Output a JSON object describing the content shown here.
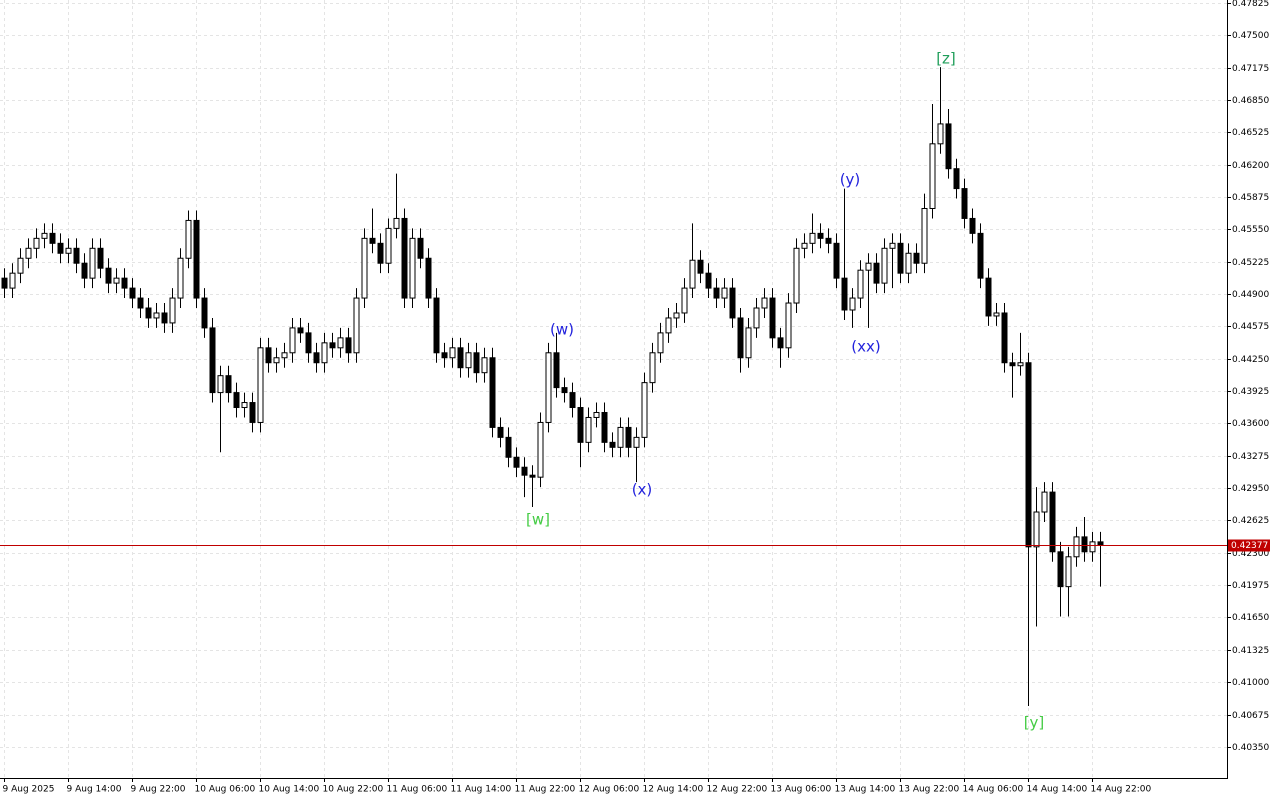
{
  "chart_data": {
    "type": "candlestick",
    "bull_color": "#ffffff",
    "bear_color": "#000000",
    "outline_color": "#000000",
    "grid": true,
    "categories": [
      "9 Aug 2025",
      null,
      null,
      null,
      null,
      null,
      null,
      null,
      "9 Aug 14:00",
      null,
      null,
      null,
      null,
      null,
      null,
      null,
      "9 Aug 22:00",
      null,
      null,
      null,
      null,
      null,
      null,
      null,
      "10 Aug 06:00",
      null,
      null,
      null,
      null,
      null,
      null,
      null,
      "10 Aug 14:00",
      null,
      null,
      null,
      null,
      null,
      null,
      null,
      "10 Aug 22:00",
      null,
      null,
      null,
      null,
      null,
      null,
      null,
      "11 Aug 06:00",
      null,
      null,
      null,
      null,
      null,
      null,
      null,
      "11 Aug 14:00",
      null,
      null,
      null,
      null,
      null,
      null,
      null,
      "11 Aug 22:00",
      null,
      null,
      null,
      null,
      null,
      null,
      null,
      "12 Aug 06:00",
      null,
      null,
      null,
      null,
      null,
      null,
      null,
      "12 Aug 14:00",
      null,
      null,
      null,
      null,
      null,
      null,
      null,
      "12 Aug 22:00",
      null,
      null,
      null,
      null,
      null,
      null,
      null,
      "13 Aug 06:00",
      null,
      null,
      null,
      null,
      null,
      null,
      null,
      "13 Aug 14:00",
      null,
      null,
      null,
      null,
      null,
      null,
      null,
      "13 Aug 22:00",
      null,
      null,
      null,
      null,
      null,
      null,
      null,
      "14 Aug 06:00",
      null,
      null,
      null,
      null,
      null,
      null,
      null,
      "14 Aug 14:00",
      null,
      null,
      null,
      null,
      null,
      null,
      null,
      "14 Aug 22:00",
      null
    ],
    "open": [
      0.4506,
      0.4496,
      0.4511,
      0.4526,
      0.4536,
      0.4546,
      0.4551,
      0.4541,
      0.4531,
      0.4536,
      0.4521,
      0.4506,
      0.4536,
      0.4516,
      0.4501,
      0.4506,
      0.4496,
      0.4486,
      0.4476,
      0.4466,
      0.4471,
      0.4461,
      0.4486,
      0.4526,
      0.4564,
      0.4486,
      0.4456,
      0.4391,
      0.4408,
      0.4391,
      0.4376,
      0.4381,
      0.4361,
      0.4436,
      0.4421,
      0.4426,
      0.4431,
      0.4456,
      0.4451,
      0.4431,
      0.4421,
      0.4441,
      0.4436,
      0.4446,
      0.4431,
      0.4486,
      0.4546,
      0.4541,
      0.4521,
      0.4556,
      0.4566,
      0.4486,
      0.4546,
      0.4526,
      0.4486,
      0.4431,
      0.4426,
      0.4436,
      0.4416,
      0.4431,
      0.4411,
      0.4426,
      0.4356,
      0.4346,
      0.4326,
      0.4316,
      0.4308,
      0.4306,
      0.4361,
      0.4431,
      0.4396,
      0.4391,
      0.4376,
      0.4341,
      0.4366,
      0.4371,
      0.4341,
      0.4336,
      0.4356,
      0.4336,
      0.4346,
      0.4401,
      0.4431,
      0.4451,
      0.4466,
      0.4471,
      0.4496,
      0.4524,
      0.4511,
      0.4496,
      0.4486,
      0.4496,
      0.4466,
      0.4426,
      0.4456,
      0.4476,
      0.4486,
      0.4446,
      0.4436,
      0.4481,
      0.4536,
      0.4541,
      0.4551,
      0.4546,
      0.4541,
      0.4506,
      0.4474,
      0.4486,
      0.4514,
      0.4521,
      0.4501,
      0.4536,
      0.4541,
      0.4511,
      0.4531,
      0.4521,
      0.4576,
      0.4641,
      0.4661,
      0.4616,
      0.4596,
      0.4566,
      0.4551,
      0.4506,
      0.4468,
      0.4471,
      0.4421,
      0.4418,
      0.4421,
      0.4236,
      0.4271,
      0.4291,
      0.4231,
      0.4196,
      0.4226,
      0.4246,
      0.4231,
      0.4241
    ],
    "high": [
      0.4516,
      0.4521,
      0.4536,
      0.4546,
      0.4556,
      0.4561,
      0.4561,
      0.4551,
      0.4546,
      0.4546,
      0.4531,
      0.4546,
      0.4546,
      0.4526,
      0.4516,
      0.4516,
      0.4506,
      0.4496,
      0.4486,
      0.4481,
      0.4481,
      0.4496,
      0.4536,
      0.4574,
      0.4574,
      0.4496,
      0.4466,
      0.4418,
      0.4418,
      0.4401,
      0.4391,
      0.4391,
      0.4446,
      0.4446,
      0.4436,
      0.4441,
      0.4466,
      0.4466,
      0.4461,
      0.4441,
      0.4451,
      0.4451,
      0.4456,
      0.4456,
      0.4496,
      0.4556,
      0.4576,
      0.4551,
      0.4566,
      0.4611,
      0.4576,
      0.4556,
      0.4556,
      0.4536,
      0.4496,
      0.4441,
      0.4446,
      0.4446,
      0.4441,
      0.4441,
      0.4436,
      0.4436,
      0.4366,
      0.4356,
      0.4336,
      0.4326,
      0.4318,
      0.4371,
      0.4441,
      0.4451,
      0.4406,
      0.4401,
      0.4386,
      0.4376,
      0.4381,
      0.4381,
      0.4351,
      0.4366,
      0.4366,
      0.4356,
      0.4411,
      0.4441,
      0.4461,
      0.4476,
      0.4481,
      0.4506,
      0.4561,
      0.4534,
      0.4521,
      0.4506,
      0.4506,
      0.4506,
      0.4476,
      0.4466,
      0.4486,
      0.4496,
      0.4496,
      0.4456,
      0.4491,
      0.4546,
      0.4551,
      0.4571,
      0.4561,
      0.4556,
      0.4551,
      0.4596,
      0.4496,
      0.4524,
      0.4531,
      0.4531,
      0.4546,
      0.4551,
      0.4551,
      0.4541,
      0.4541,
      0.4591,
      0.4681,
      0.4718,
      0.4676,
      0.4626,
      0.4606,
      0.4576,
      0.4561,
      0.4516,
      0.4481,
      0.4481,
      0.4431,
      0.4451,
      0.4431,
      0.4296,
      0.4301,
      0.4301,
      0.4241,
      0.4236,
      0.4256,
      0.4266,
      0.4251,
      0.4251
    ],
    "low": [
      0.4486,
      0.4486,
      0.4501,
      0.4516,
      0.4526,
      0.4536,
      0.4531,
      0.4521,
      0.4521,
      0.4511,
      0.4496,
      0.4496,
      0.4506,
      0.4491,
      0.4491,
      0.4486,
      0.4476,
      0.4466,
      0.4456,
      0.4456,
      0.4451,
      0.4451,
      0.4476,
      0.4516,
      0.4476,
      0.4446,
      0.4381,
      0.4331,
      0.4381,
      0.4366,
      0.4366,
      0.4351,
      0.4351,
      0.4411,
      0.4411,
      0.4416,
      0.4421,
      0.4441,
      0.4421,
      0.4411,
      0.4411,
      0.4426,
      0.4426,
      0.4421,
      0.4421,
      0.4476,
      0.4531,
      0.4511,
      0.4511,
      0.4546,
      0.4476,
      0.4476,
      0.4516,
      0.4476,
      0.4421,
      0.4416,
      0.4416,
      0.4406,
      0.4406,
      0.4401,
      0.4401,
      0.4346,
      0.4336,
      0.4316,
      0.4306,
      0.4286,
      0.4276,
      0.4296,
      0.4351,
      0.4386,
      0.4381,
      0.4366,
      0.4316,
      0.4331,
      0.4356,
      0.4331,
      0.4326,
      0.4326,
      0.4326,
      0.4301,
      0.4336,
      0.4391,
      0.4421,
      0.4441,
      0.4456,
      0.4461,
      0.4486,
      0.4501,
      0.4486,
      0.4476,
      0.4476,
      0.4456,
      0.4411,
      0.4416,
      0.4446,
      0.4466,
      0.4436,
      0.4416,
      0.4426,
      0.4471,
      0.4526,
      0.4531,
      0.4536,
      0.4531,
      0.4496,
      0.4464,
      0.4456,
      0.4476,
      0.4456,
      0.4491,
      0.4491,
      0.4496,
      0.4501,
      0.4501,
      0.4511,
      0.4511,
      0.4566,
      0.4631,
      0.4606,
      0.4586,
      0.4556,
      0.4541,
      0.4496,
      0.4458,
      0.4458,
      0.4411,
      0.4386,
      0.4408,
      0.4076,
      0.4156,
      0.4261,
      0.4221,
      0.4166,
      0.4166,
      0.4216,
      0.4221,
      0.4221,
      0.4196
    ],
    "close": [
      0.4496,
      0.4511,
      0.4526,
      0.4536,
      0.4546,
      0.4551,
      0.4541,
      0.4531,
      0.4536,
      0.4521,
      0.4506,
      0.4536,
      0.4516,
      0.4501,
      0.4506,
      0.4496,
      0.4486,
      0.4476,
      0.4466,
      0.4471,
      0.4461,
      0.4486,
      0.4526,
      0.4564,
      0.4486,
      0.4456,
      0.4391,
      0.4408,
      0.4391,
      0.4376,
      0.4381,
      0.4361,
      0.4436,
      0.4421,
      0.4426,
      0.4431,
      0.4456,
      0.4451,
      0.4431,
      0.4421,
      0.4441,
      0.4436,
      0.4446,
      0.4431,
      0.4486,
      0.4546,
      0.4541,
      0.4521,
      0.4556,
      0.4566,
      0.4486,
      0.4546,
      0.4526,
      0.4486,
      0.4431,
      0.4426,
      0.4436,
      0.4416,
      0.4431,
      0.4411,
      0.4426,
      0.4356,
      0.4346,
      0.4326,
      0.4316,
      0.4308,
      0.4306,
      0.4361,
      0.4431,
      0.4396,
      0.4391,
      0.4376,
      0.4341,
      0.4366,
      0.4371,
      0.4341,
      0.4336,
      0.4356,
      0.4336,
      0.4346,
      0.4401,
      0.4431,
      0.4451,
      0.4466,
      0.4471,
      0.4496,
      0.4524,
      0.4511,
      0.4496,
      0.4486,
      0.4496,
      0.4466,
      0.4426,
      0.4456,
      0.4476,
      0.4486,
      0.4446,
      0.4436,
      0.4481,
      0.4536,
      0.4541,
      0.4551,
      0.4546,
      0.4541,
      0.4506,
      0.4474,
      0.4486,
      0.4514,
      0.4521,
      0.4501,
      0.4536,
      0.4541,
      0.4511,
      0.4531,
      0.4521,
      0.4576,
      0.4641,
      0.4661,
      0.4616,
      0.4596,
      0.4566,
      0.4551,
      0.4506,
      0.4468,
      0.4471,
      0.4421,
      0.4418,
      0.4421,
      0.4236,
      0.4271,
      0.4291,
      0.4231,
      0.4196,
      0.4226,
      0.4246,
      0.4231,
      0.4241,
      0.42377
    ],
    "ylim": [
      0.40037,
      0.47825
    ],
    "yticks": [
      0.47825,
      {
        "value": 0.475,
        "label": "0.47500"
      },
      0.47175,
      {
        "value": 0.4685,
        "label": "0.46850"
      },
      0.46525,
      {
        "value": 0.462,
        "label": "0.46200"
      },
      0.45875,
      {
        "value": 0.4555,
        "label": "0.45550"
      },
      0.45225,
      {
        "value": 0.449,
        "label": "0.44900"
      },
      0.44575,
      {
        "value": 0.4425,
        "label": "0.44250"
      },
      0.43925,
      {
        "value": 0.436,
        "label": "0.43600"
      },
      0.43275,
      {
        "value": 0.4295,
        "label": "0.42950"
      },
      0.42625,
      {
        "value": 0.423,
        "label": "0.42300"
      },
      0.41975,
      {
        "value": 0.4165,
        "label": "0.41650"
      },
      0.41325,
      {
        "value": 0.41,
        "label": "0.41000"
      },
      0.40675,
      {
        "value": 0.4035,
        "label": "0.40350"
      }
    ],
    "current_price": 0.42377,
    "current_price_color": "#c00000",
    "annotations": [
      {
        "text": "[w]",
        "color": "#44cc44"
      },
      {
        "text": "(w)",
        "color": "#2222dd"
      },
      {
        "text": "(x)",
        "color": "#2222dd"
      },
      {
        "text": "(y)",
        "color": "#2222dd"
      },
      {
        "text": "(xx)",
        "color": "#2222dd"
      },
      {
        "text": "[z]",
        "color": "#1f9e5a"
      },
      {
        "text": "[y]",
        "color": "#44cc44"
      }
    ]
  }
}
